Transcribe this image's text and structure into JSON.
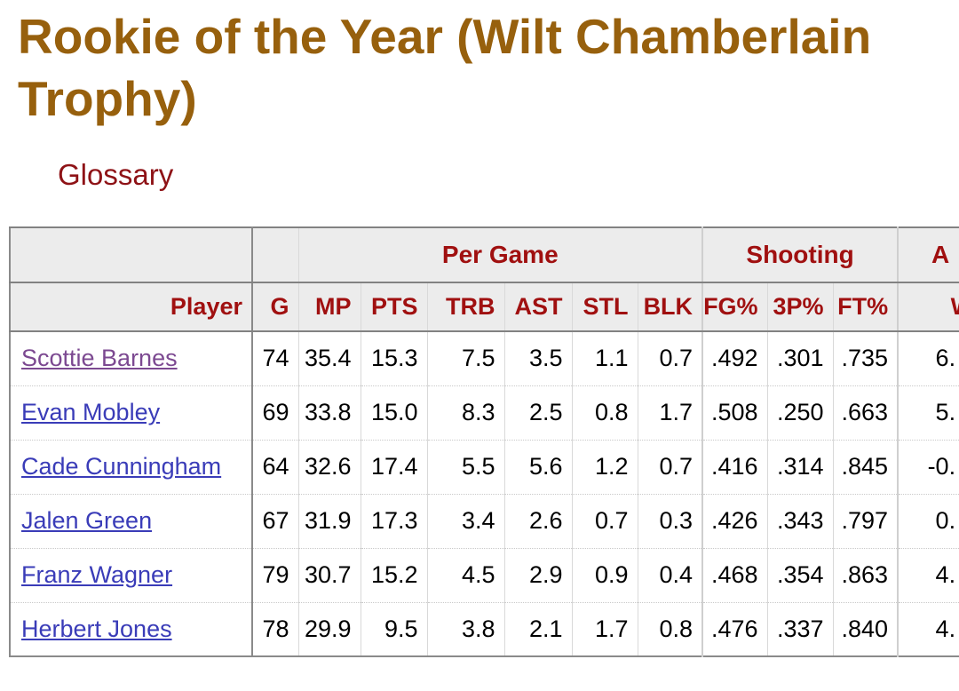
{
  "page": {
    "title": "Rookie of the Year (Wilt Chamberlain Trophy)",
    "glossary_label": "Glossary"
  },
  "colors": {
    "title_gold": "#97600d",
    "glossary_red": "#8e1216",
    "header_red": "#a01010",
    "header_bg": "#ececec",
    "link_blue": "#3a3cb8",
    "link_visited": "#7c4991"
  },
  "table": {
    "groups": [
      {
        "label": "",
        "span": 1
      },
      {
        "label": "",
        "span": 1
      },
      {
        "label": "Per Game",
        "span": 6
      },
      {
        "label": "Shooting",
        "span": 3
      },
      {
        "label": "A",
        "span": 1
      }
    ],
    "columns": [
      "Player",
      "G",
      "MP",
      "PTS",
      "TRB",
      "AST",
      "STL",
      "BLK",
      "FG%",
      "3P%",
      "FT%",
      "W"
    ],
    "rows": [
      {
        "player": "Scottie Barnes",
        "visited": true,
        "values": [
          "74",
          "35.4",
          "15.3",
          "7.5",
          "3.5",
          "1.1",
          "0.7",
          ".492",
          ".301",
          ".735",
          "6."
        ]
      },
      {
        "player": "Evan Mobley",
        "visited": false,
        "values": [
          "69",
          "33.8",
          "15.0",
          "8.3",
          "2.5",
          "0.8",
          "1.7",
          ".508",
          ".250",
          ".663",
          "5."
        ]
      },
      {
        "player": "Cade Cunningham",
        "visited": false,
        "values": [
          "64",
          "32.6",
          "17.4",
          "5.5",
          "5.6",
          "1.2",
          "0.7",
          ".416",
          ".314",
          ".845",
          "-0."
        ]
      },
      {
        "player": "Jalen Green",
        "visited": false,
        "values": [
          "67",
          "31.9",
          "17.3",
          "3.4",
          "2.6",
          "0.7",
          "0.3",
          ".426",
          ".343",
          ".797",
          "0."
        ]
      },
      {
        "player": "Franz Wagner",
        "visited": false,
        "values": [
          "79",
          "30.7",
          "15.2",
          "4.5",
          "2.9",
          "0.9",
          "0.4",
          ".468",
          ".354",
          ".863",
          "4."
        ]
      },
      {
        "player": "Herbert Jones",
        "visited": false,
        "values": [
          "78",
          "29.9",
          "9.5",
          "3.8",
          "2.1",
          "1.7",
          "0.8",
          ".476",
          ".337",
          ".840",
          "4."
        ]
      }
    ]
  }
}
